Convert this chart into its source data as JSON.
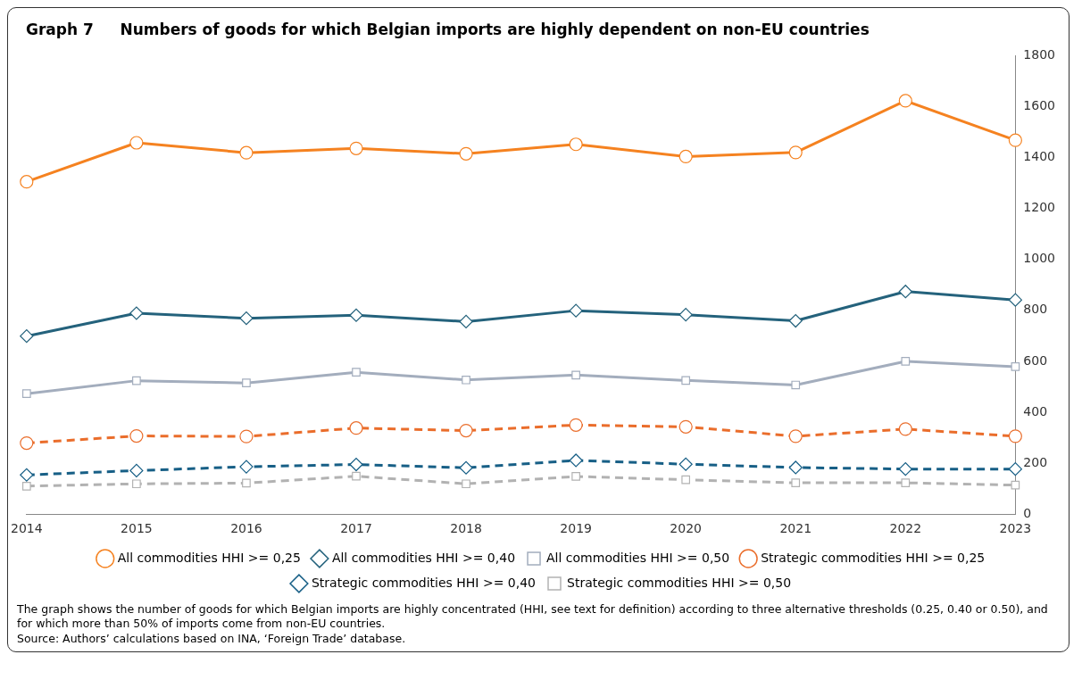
{
  "chart_data": {
    "type": "line",
    "title": "Graph 7     Numbers of goods for which Belgian imports are highly dependent on non-EU countries",
    "categories": [
      "2014",
      "2015",
      "2016",
      "2017",
      "2018",
      "2019",
      "2020",
      "2021",
      "2022",
      "2023"
    ],
    "series": [
      {
        "name": "All commodities HHI >= 0,25",
        "color": "#f58220",
        "marker": "circle",
        "line_style": "solid",
        "values": [
          1305,
          1458,
          1419,
          1436,
          1415,
          1452,
          1404,
          1420,
          1623,
          1468
        ]
      },
      {
        "name": "All commodities HHI >= 0,40",
        "color": "#24627c",
        "marker": "diamond",
        "line_style": "solid",
        "values": [
          699,
          789,
          769,
          781,
          756,
          799,
          783,
          759,
          874,
          841
        ]
      },
      {
        "name": "All commodities HHI >= 0,50",
        "color": "#a3adbd",
        "marker": "square",
        "line_style": "solid",
        "values": [
          473,
          524,
          515,
          557,
          527,
          546,
          525,
          507,
          600,
          579
        ]
      },
      {
        "name": "Strategic commodities HHI >= 0,25",
        "color": "#ea6d2b",
        "marker": "circle",
        "line_style": "dashed",
        "values": [
          279,
          307,
          305,
          338,
          328,
          350,
          343,
          306,
          334,
          306
        ]
      },
      {
        "name": "Strategic commodities HHI >= 0,40",
        "color": "#175f86",
        "marker": "diamond",
        "line_style": "dashed",
        "values": [
          154,
          171,
          186,
          195,
          182,
          211,
          196,
          183,
          177,
          177
        ]
      },
      {
        "name": "Strategic commodities HHI >= 0,50",
        "color": "#b2b2b2",
        "marker": "square",
        "line_style": "dashed",
        "values": [
          110,
          119,
          122,
          149,
          119,
          148,
          135,
          123,
          123,
          114
        ]
      }
    ],
    "ylim": [
      0,
      1800
    ],
    "yticks": [
      0,
      200,
      400,
      600,
      800,
      1000,
      1200,
      1400,
      1600,
      1800
    ],
    "grid": false,
    "legend": "bottom",
    "annotations": [
      "The graph shows the number of goods for which Belgian imports are highly concentrated (HHI, see text for definition) according to three alternative thresholds (0.25, 0.40 or 0.50), and for which more than 50% of imports come from non-EU countries.",
      "Source: Authors’ calculations based on INA, ‘Foreign Trade’ database."
    ]
  }
}
